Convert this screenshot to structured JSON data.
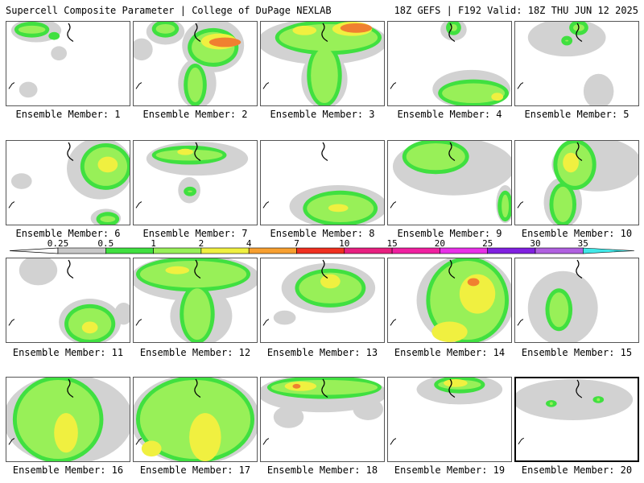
{
  "header": {
    "title": "Supercell Composite Parameter | College of DuPage NEXLAB",
    "run_info": "18Z GEFS | F192 Valid: 18Z THU JUN 12 2025"
  },
  "member_label_prefix": "Ensemble Member: ",
  "members": [
    1,
    2,
    3,
    4,
    5,
    6,
    7,
    8,
    9,
    10,
    11,
    12,
    13,
    14,
    15,
    16,
    17,
    18,
    19,
    20
  ],
  "selected_member": 20,
  "legend": {
    "ticks": [
      "0.25",
      "0.5",
      "1",
      "2",
      "4",
      "7",
      "10",
      "15",
      "20",
      "25",
      "30",
      "35"
    ],
    "colors": [
      "#c8c8c8",
      "#40e040",
      "#98f058",
      "#f0f040",
      "#f8a030",
      "#f03020",
      "#e82080",
      "#f020a0",
      "#e830e8",
      "#8020e0",
      "#b060e0",
      "#40e8e8"
    ]
  },
  "colors": {
    "light_gray": "#d2d2d2",
    "green": "#40e040",
    "light_green": "#98f058",
    "yellow": "#f0f040",
    "orange": "#f08030",
    "red": "#f03020"
  }
}
